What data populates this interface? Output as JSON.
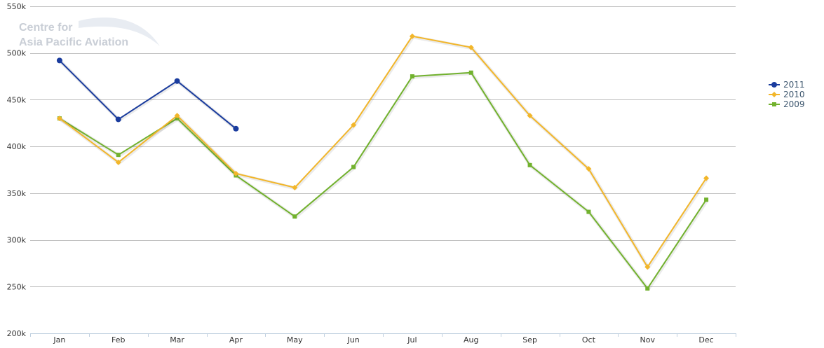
{
  "watermark": {
    "line1": "Centre for",
    "line2": "Asia Pacific Aviation"
  },
  "chart_data": {
    "type": "line",
    "categories": [
      "Jan",
      "Feb",
      "Mar",
      "Apr",
      "May",
      "Jun",
      "Jul",
      "Aug",
      "Sep",
      "Oct",
      "Nov",
      "Dec"
    ],
    "ylim": [
      200000,
      550000
    ],
    "yticks": [
      200000,
      250000,
      300000,
      350000,
      400000,
      450000,
      500000,
      550000
    ],
    "ytick_labels": [
      "200k",
      "250k",
      "300k",
      "350k",
      "400k",
      "450k",
      "500k",
      "550k"
    ],
    "grid": true,
    "legend_position": "right",
    "series": [
      {
        "name": "2011",
        "color": "#1a3c9e",
        "marker": "circle",
        "values": [
          492000,
          429000,
          470000,
          419000,
          null,
          null,
          null,
          null,
          null,
          null,
          null,
          null
        ]
      },
      {
        "name": "2010",
        "color": "#f2b62a",
        "marker": "diamond",
        "values": [
          430000,
          383000,
          433000,
          371000,
          356000,
          423000,
          518000,
          506000,
          433000,
          376000,
          271000,
          366000
        ]
      },
      {
        "name": "2009",
        "color": "#72b22e",
        "marker": "square",
        "values": [
          430000,
          391000,
          430000,
          369000,
          325000,
          378000,
          475000,
          479000,
          380000,
          330000,
          248000,
          343000
        ]
      }
    ]
  }
}
